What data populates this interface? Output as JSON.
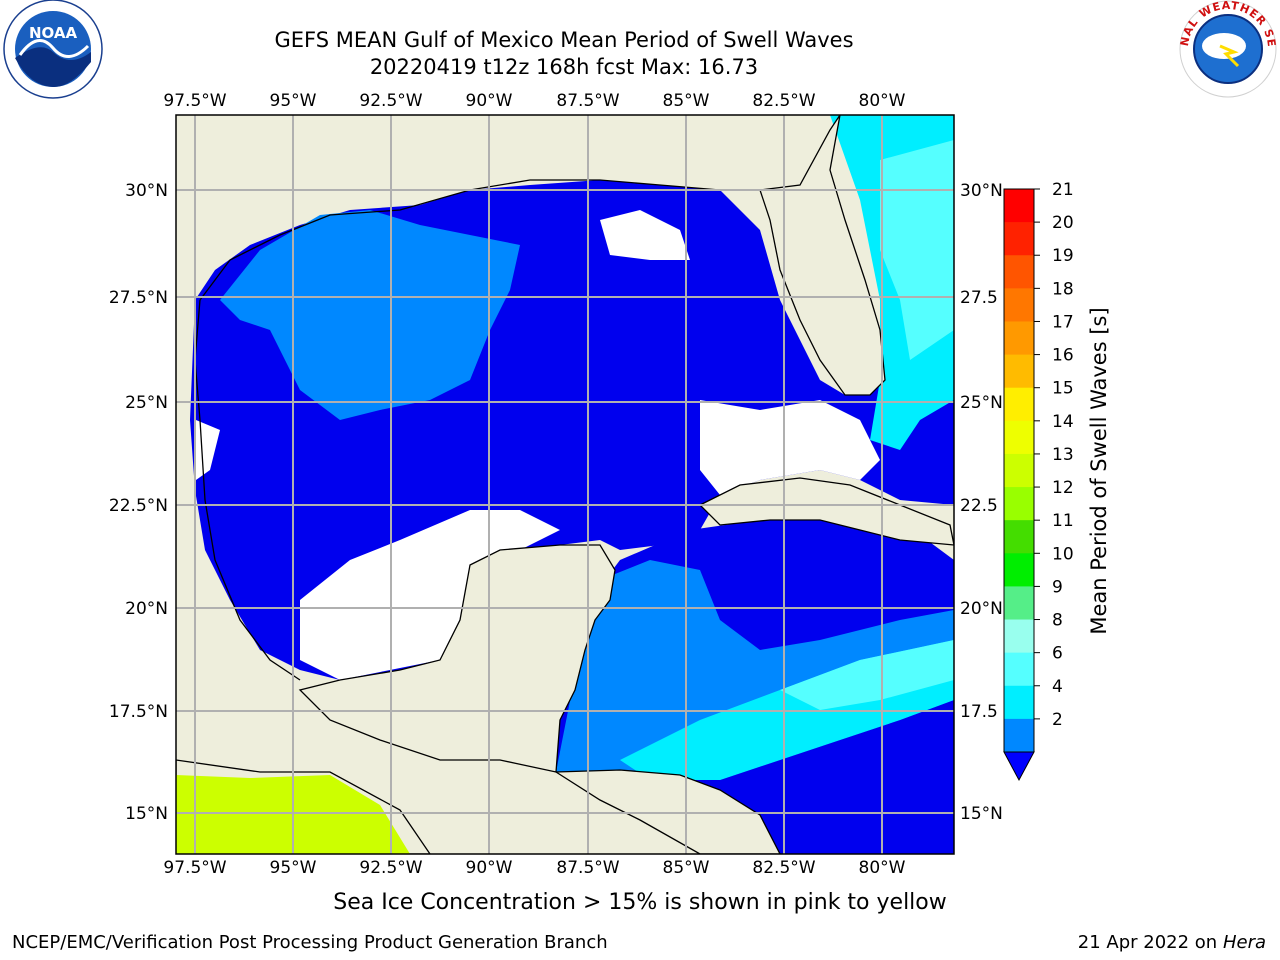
{
  "title_line1": "GEFS MEAN Gulf of Mexico Mean Period of Swell Waves",
  "title_line2": "20220419 t12z 168h fcst   Max: 16.73",
  "lon_labels": [
    "97.5°W",
    "95°W",
    "92.5°W",
    "90°W",
    "87.5°W",
    "85°W",
    "82.5°W",
    "80°W"
  ],
  "lat_labels_left": [
    "30°N",
    "27.5°N",
    "25°N",
    "22.5°N",
    "20°N",
    "17.5°N",
    "15°N"
  ],
  "lat_labels_right": [
    "30°N",
    "27.5",
    "25°N",
    "22.5",
    "20°N",
    "17.5",
    "15°N"
  ],
  "colorbar": {
    "label": "Mean Period of Swell Waves [s]",
    "ticks": [
      "21",
      "20",
      "19",
      "18",
      "17",
      "16",
      "15",
      "14",
      "13",
      "12",
      "11",
      "10",
      "9",
      "8",
      "6",
      "4",
      "2"
    ],
    "colors": [
      "#ff0000",
      "#ff2200",
      "#ff5500",
      "#ff7700",
      "#ff9900",
      "#ffbb00",
      "#ffee00",
      "#eeff00",
      "#ccff00",
      "#99ff00",
      "#44dd00",
      "#00ee00",
      "#55ee88",
      "#99ffee",
      "#55ffff",
      "#00eeff",
      "#0088ff"
    ],
    "under_color": "#0000ff"
  },
  "sea_ice_note": "Sea Ice Concentration > 15% is shown in pink to yellow",
  "footer_left": "NCEP/EMC/Verification Post Processing Product Generation Branch",
  "footer_date": "21 Apr 2022 on",
  "footer_machine": "Hera",
  "logo_left": "NOAA",
  "logo_right": "NATIONAL WEATHER SERVICE",
  "colors": {
    "land": "#eeeedc",
    "water_deep": "#0000ee",
    "water_light": "#0088ff",
    "cyan": "#00eeff",
    "light_cyan": "#55ffff",
    "yellow_green": "#ccff00"
  }
}
